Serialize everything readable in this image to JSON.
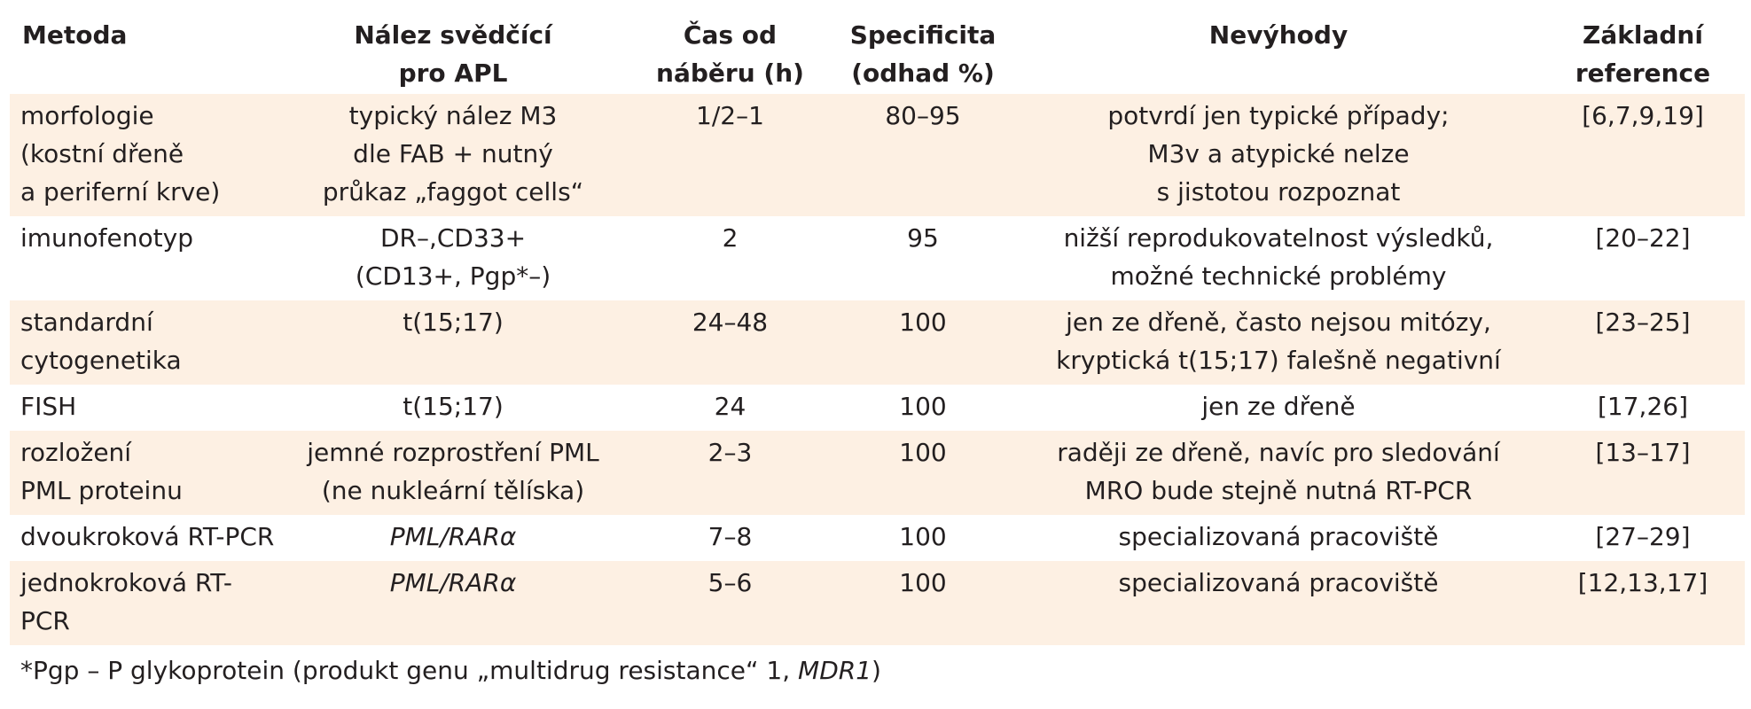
{
  "headers": {
    "metoda": "Metoda",
    "nalez": [
      "Nález svědčící",
      "pro APL"
    ],
    "cas": [
      "Čas od",
      "náběru (h)"
    ],
    "specificita": [
      "Specificita",
      "(odhad %)"
    ],
    "nevyhody": "Nevýhody",
    "reference": [
      "Základní",
      "reference"
    ]
  },
  "rows": [
    {
      "metoda": [
        "morfologie",
        "(kostní dřeně",
        "a periferní krve)"
      ],
      "nalez": [
        "typický nález M3",
        "dle FAB + nutný",
        "průkaz „faggot cells“"
      ],
      "cas": "1/2–1",
      "specificita": "80–95",
      "nevyhody": [
        "potvrdí jen typické případy;",
        "M3v a atypické nelze",
        "s jistotou rozpoznat"
      ],
      "reference": "[6,7,9,19]"
    },
    {
      "metoda": [
        "imunofenotyp"
      ],
      "nalez": [
        "DR–,CD33+",
        "(CD13+, Pgp*–)"
      ],
      "cas": "2",
      "specificita": "95",
      "nevyhody": [
        "nižší reprodukovatelnost výsledků,",
        "možné technické problémy"
      ],
      "reference": "[20–22]"
    },
    {
      "metoda": [
        "standardní",
        "cytogenetika"
      ],
      "nalez": [
        "t(15;17)"
      ],
      "cas": "24–48",
      "specificita": "100",
      "nevyhody": [
        "jen ze dřeně, často nejsou mitózy,",
        "kryptická t(15;17) falešně negativní"
      ],
      "reference": "[23–25]"
    },
    {
      "metoda": [
        "FISH"
      ],
      "nalez": [
        "t(15;17)"
      ],
      "cas": "24",
      "specificita": "100",
      "nevyhody": [
        "jen ze dřeně"
      ],
      "reference": "[17,26]"
    },
    {
      "metoda": [
        "rozložení",
        "PML proteinu"
      ],
      "nalez": [
        "jemné rozprostření PML",
        "(ne nukleární tělíska)"
      ],
      "cas": "2–3",
      "specificita": "100",
      "nevyhody": [
        "raději ze dřeně, navíc pro sledování",
        "MRO bude stejně nutná RT-PCR"
      ],
      "reference": "[13–17]"
    },
    {
      "metoda": [
        "dvoukroková RT-PCR"
      ],
      "nalez": [
        "PML/RARα"
      ],
      "cas": "7–8",
      "specificita": "100",
      "nevyhody": [
        "specializovaná pracoviště"
      ],
      "reference": "[27–29]"
    },
    {
      "metoda": [
        "jednokroková RT-PCR"
      ],
      "nalez": [
        "PML/RARα"
      ],
      "cas": "5–6",
      "specificita": "100",
      "nevyhody": [
        "specializovaná pracoviště"
      ],
      "reference": "[12,13,17]"
    }
  ],
  "footnote": {
    "prefix": "*Pgp – P glykoprotein (produkt genu „multidrug resistance“ 1, ",
    "gene": "MDR1",
    "suffix": ")"
  },
  "colors": {
    "row_shade": "#fdf0e3",
    "text": "#231f20"
  }
}
